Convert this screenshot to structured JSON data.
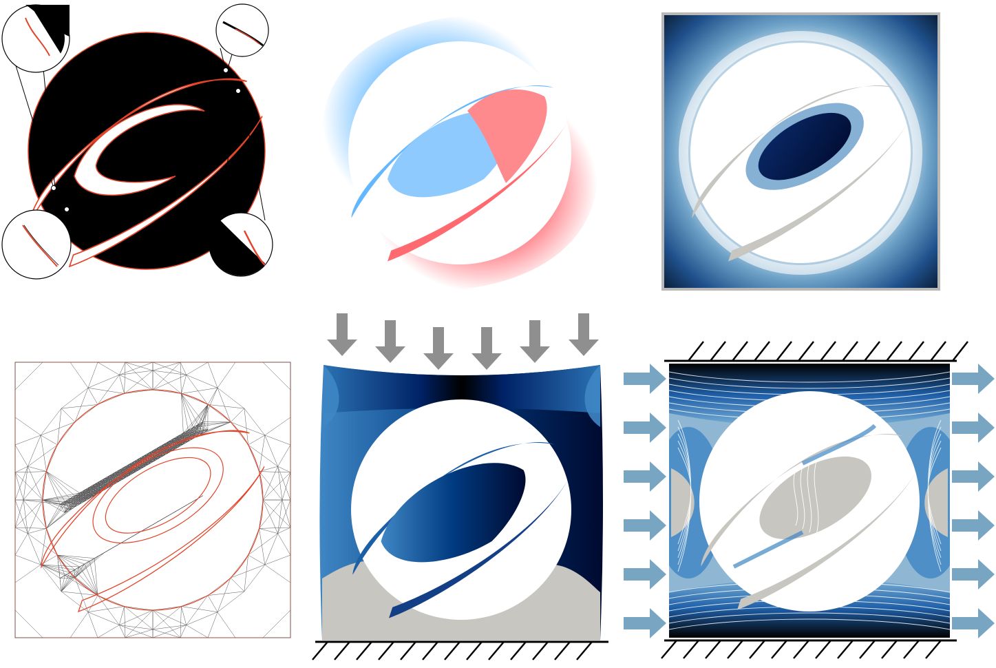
{
  "panels": [
    {
      "id": "geometry-zoom",
      "row": "top",
      "col": "left"
    },
    {
      "id": "signed-field",
      "row": "top",
      "col": "center"
    },
    {
      "id": "distance-field",
      "row": "top",
      "col": "right"
    },
    {
      "id": "triangle-mesh",
      "row": "bottom",
      "col": "left"
    },
    {
      "id": "compression-displacement",
      "row": "bottom",
      "col": "center"
    },
    {
      "id": "flow-velocity",
      "row": "bottom",
      "col": "right"
    }
  ],
  "colors": {
    "background": "#ffffff",
    "solid": "#000000",
    "boundary_red": "#e2442a",
    "blue_positive": "#5ab4ff",
    "red_negative": "#ff5a64",
    "deep_navy": "#001a4d",
    "mid_blue": "#1f6fb0",
    "pale_blue": "#6fa3c8",
    "solid_gray": "#c8c6c0",
    "load_arrow": "#8f8f8f",
    "flow_arrow": "#78a6c2",
    "wall_hatch": "#000000"
  },
  "icons": {
    "load": "down-arrow-icon",
    "flow": "right-arrow-icon",
    "support": "fixed-wall-hatch-icon"
  },
  "load_arrow_count": 6,
  "flow_arrow_count_per_side": 6
}
